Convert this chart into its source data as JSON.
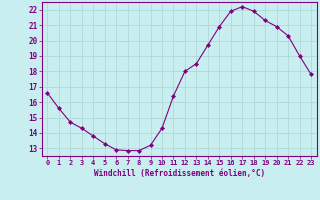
{
  "y_vals": [
    16.6,
    15.6,
    14.7,
    14.3,
    13.8,
    13.3,
    12.9,
    12.85,
    12.85,
    13.2,
    14.3,
    16.4,
    18.0,
    18.5,
    19.7,
    20.9,
    21.9,
    22.2,
    21.9,
    21.3,
    20.9,
    20.3,
    19.0,
    17.8
  ],
  "xlabel": "Windchill (Refroidissement éolien,°C)",
  "xlim": [
    -0.5,
    23.5
  ],
  "ylim": [
    12.5,
    22.5
  ],
  "yticks": [
    13,
    14,
    15,
    16,
    17,
    18,
    19,
    20,
    21,
    22
  ],
  "xticks": [
    0,
    1,
    2,
    3,
    4,
    5,
    6,
    7,
    8,
    9,
    10,
    11,
    12,
    13,
    14,
    15,
    16,
    17,
    18,
    19,
    20,
    21,
    22,
    23
  ],
  "line_color": "#800080",
  "marker": "D",
  "bg_color": "#c8eef0",
  "grid_color": "#b0d8d8",
  "tick_color": "#800080",
  "label_color": "#800080",
  "spine_color": "#800080"
}
